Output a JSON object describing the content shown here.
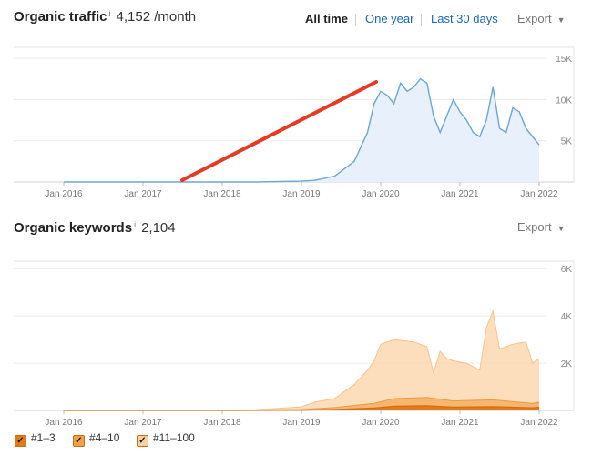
{
  "traffic": {
    "title": "Organic traffic",
    "info": "i",
    "value": "4,152 /month",
    "tabs": [
      {
        "label": "All time",
        "active": true
      },
      {
        "label": "One year",
        "active": false
      },
      {
        "label": "Last 30 days",
        "active": false
      }
    ],
    "export": "Export"
  },
  "keywords": {
    "title": "Organic keywords",
    "info": "i",
    "value": "2,104",
    "export": "Export"
  },
  "legend": [
    {
      "label": "#1–3",
      "color": "#e07b1a"
    },
    {
      "label": "#4–10",
      "color": "#f1a14a"
    },
    {
      "label": "#11–100",
      "color": "#fbd2a4"
    }
  ],
  "colors": {
    "traffic_line": "#6aa6d6",
    "traffic_fill": "#e8f1fb",
    "annotation_arrow": "#e63a25",
    "kw_11_100": "#fbd8b0",
    "kw_4_10": "#f4b36c",
    "kw_1_3": "#e07b1a"
  },
  "chart_data": [
    {
      "type": "area",
      "x_ticks": [
        "Jan 2016",
        "Jan 2017",
        "Jan 2018",
        "Jan 2019",
        "Jan 2020",
        "Jan 2021",
        "Jan 2022"
      ],
      "y_ticks": [
        "5K",
        "10K",
        "15K"
      ],
      "ylim": [
        0,
        16000
      ],
      "series": [
        {
          "values": [
            [
              "2016-01",
              0
            ],
            [
              "2017-06",
              0
            ],
            [
              "2018-06",
              0
            ],
            [
              "2019-01",
              100
            ],
            [
              "2019-03",
              200
            ],
            [
              "2019-06",
              700
            ],
            [
              "2019-09",
              2500
            ],
            [
              "2019-11",
              6000
            ],
            [
              "2019-12",
              9500
            ],
            [
              "2020-01",
              11000
            ],
            [
              "2020-02",
              10500
            ],
            [
              "2020-03",
              9500
            ],
            [
              "2020-04",
              12000
            ],
            [
              "2020-05",
              11000
            ],
            [
              "2020-06",
              11500
            ],
            [
              "2020-07",
              12500
            ],
            [
              "2020-08",
              12000
            ],
            [
              "2020-09",
              8000
            ],
            [
              "2020-10",
              6000
            ],
            [
              "2020-11",
              8000
            ],
            [
              "2020-12",
              10000
            ],
            [
              "2021-01",
              8500
            ],
            [
              "2021-02",
              7500
            ],
            [
              "2021-03",
              6000
            ],
            [
              "2021-04",
              5500
            ],
            [
              "2021-05",
              7500
            ],
            [
              "2021-06",
              11500
            ],
            [
              "2021-07",
              6500
            ],
            [
              "2021-08",
              6000
            ],
            [
              "2021-09",
              9000
            ],
            [
              "2021-10",
              8500
            ],
            [
              "2021-11",
              6500
            ],
            [
              "2021-12",
              5500
            ],
            [
              "2022-01",
              4500
            ]
          ]
        }
      ]
    },
    {
      "type": "area",
      "x_ticks": [
        "Jan 2016",
        "Jan 2017",
        "Jan 2018",
        "Jan 2019",
        "Jan 2020",
        "Jan 2021",
        "Jan 2022"
      ],
      "y_ticks": [
        "2K",
        "4K",
        "6K"
      ],
      "ylim": [
        0,
        6200
      ],
      "series": [
        {
          "name": "#11–100",
          "values": [
            [
              "2016-01",
              0
            ],
            [
              "2017-06",
              0
            ],
            [
              "2018-01",
              0
            ],
            [
              "2018-06",
              30
            ],
            [
              "2019-01",
              150
            ],
            [
              "2019-03",
              350
            ],
            [
              "2019-06",
              500
            ],
            [
              "2019-09",
              1100
            ],
            [
              "2019-11",
              1700
            ],
            [
              "2019-12",
              2100
            ],
            [
              "2020-01",
              2800
            ],
            [
              "2020-03",
              3000
            ],
            [
              "2020-06",
              2900
            ],
            [
              "2020-08",
              2700
            ],
            [
              "2020-09",
              1600
            ],
            [
              "2020-10",
              2500
            ],
            [
              "2020-11",
              2200
            ],
            [
              "2020-12",
              2100
            ],
            [
              "2021-02",
              2000
            ],
            [
              "2021-04",
              1700
            ],
            [
              "2021-05",
              3500
            ],
            [
              "2021-06",
              4200
            ],
            [
              "2021-07",
              2600
            ],
            [
              "2021-09",
              2800
            ],
            [
              "2021-11",
              2900
            ],
            [
              "2021-12",
              2000
            ],
            [
              "2022-01",
              2200
            ]
          ]
        },
        {
          "name": "#4–10",
          "values": [
            [
              "2016-01",
              0
            ],
            [
              "2018-01",
              0
            ],
            [
              "2019-01",
              40
            ],
            [
              "2019-06",
              120
            ],
            [
              "2019-12",
              300
            ],
            [
              "2020-03",
              500
            ],
            [
              "2020-08",
              550
            ],
            [
              "2020-12",
              400
            ],
            [
              "2021-06",
              450
            ],
            [
              "2021-12",
              300
            ],
            [
              "2022-01",
              350
            ]
          ]
        },
        {
          "name": "#1–3",
          "values": [
            [
              "2016-01",
              0
            ],
            [
              "2018-01",
              0
            ],
            [
              "2019-01",
              10
            ],
            [
              "2019-06",
              40
            ],
            [
              "2019-12",
              100
            ],
            [
              "2020-03",
              180
            ],
            [
              "2020-08",
              200
            ],
            [
              "2020-12",
              140
            ],
            [
              "2021-06",
              160
            ],
            [
              "2021-12",
              110
            ],
            [
              "2022-01",
              130
            ]
          ]
        }
      ]
    }
  ]
}
